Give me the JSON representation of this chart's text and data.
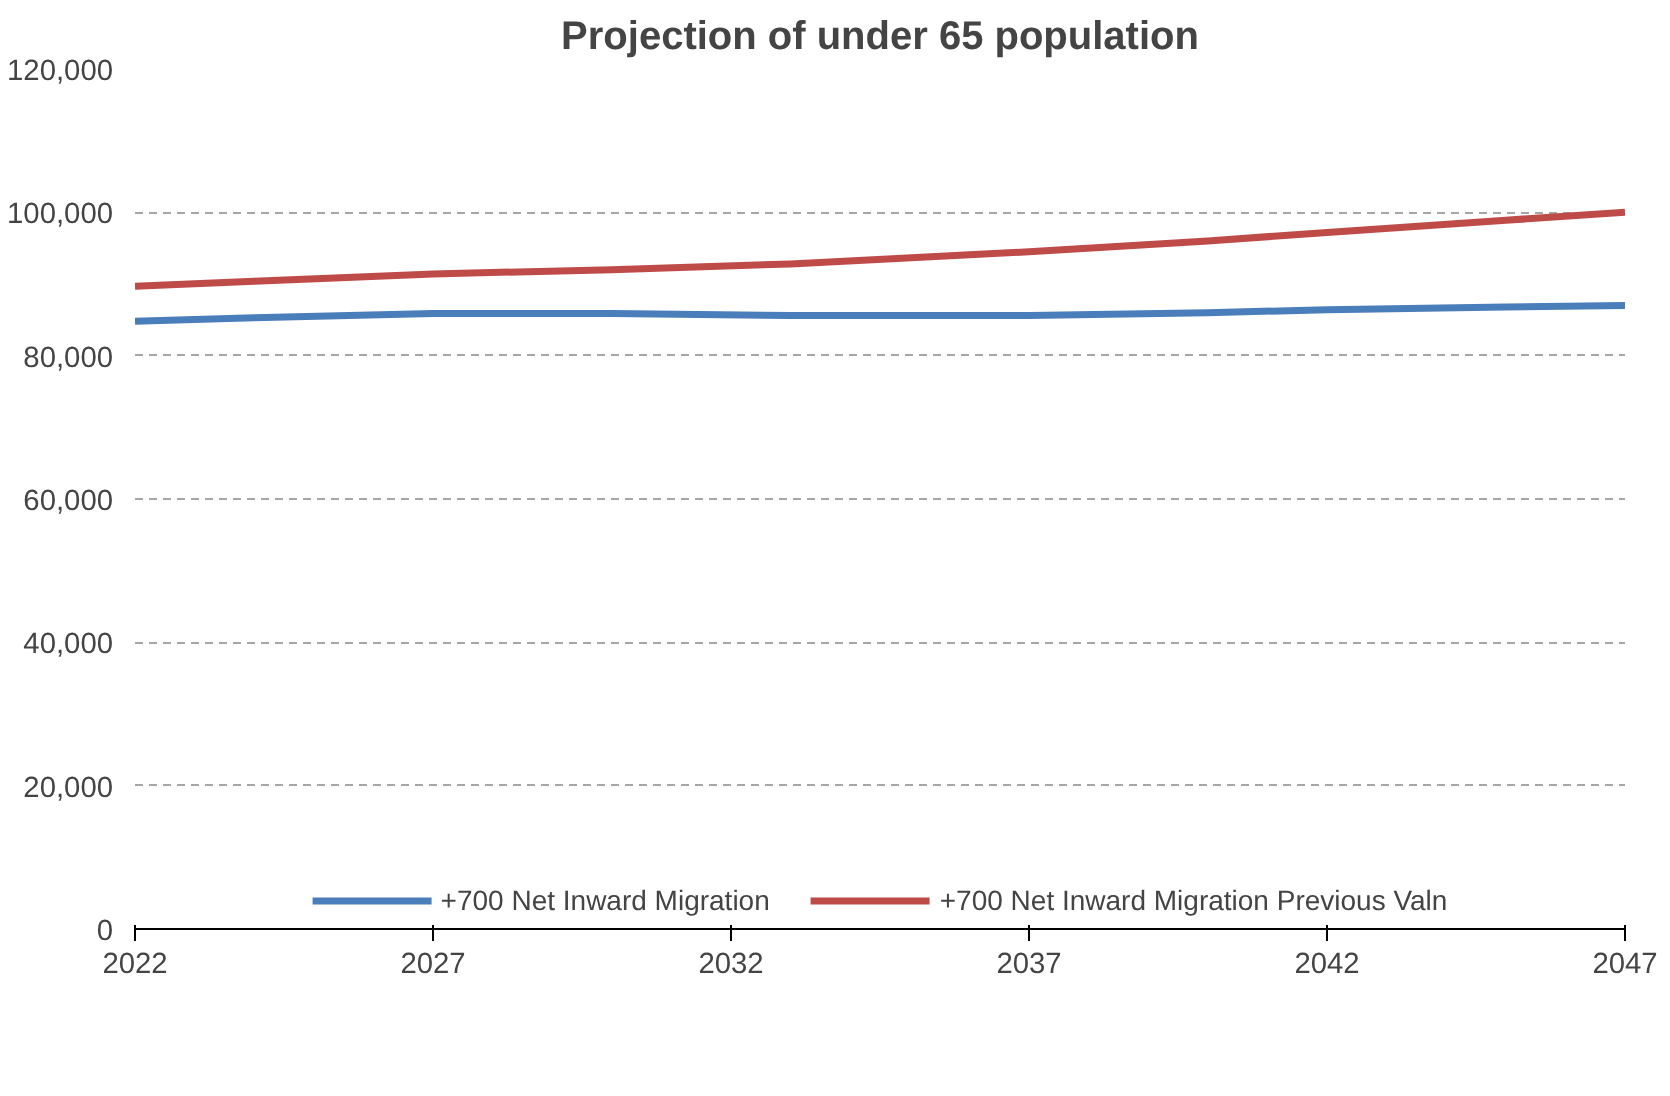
{
  "chart_data": {
    "type": "line",
    "title": "Projection of under 65 population",
    "x": [
      2022,
      2024,
      2027,
      2030,
      2033,
      2037,
      2040,
      2042,
      2045,
      2047
    ],
    "series": [
      {
        "name": "+700 Net Inward Migration",
        "color": "#4a7ebb",
        "values": [
          84800,
          85300,
          85900,
          85900,
          85600,
          85600,
          86000,
          86400,
          86800,
          87000
        ]
      },
      {
        "name": "+700 Net Inward Migration Previous Valn",
        "color": "#be4b48",
        "values": [
          89700,
          90400,
          91400,
          92000,
          92800,
          94500,
          96000,
          97200,
          98900,
          100000
        ]
      }
    ],
    "xlim": [
      2022,
      2047
    ],
    "xticks": [
      2022,
      2027,
      2032,
      2037,
      2042,
      2047
    ],
    "ylim": [
      0,
      120000
    ],
    "yticks": [
      {
        "value": 0,
        "label": "0"
      },
      {
        "value": 20000,
        "label": "20,000"
      },
      {
        "value": 40000,
        "label": "40,000"
      },
      {
        "value": 60000,
        "label": "60,000"
      },
      {
        "value": 80000,
        "label": "80,000"
      },
      {
        "value": 100000,
        "label": "100,000"
      },
      {
        "value": 120000,
        "label": "120,000"
      }
    ],
    "grid": "y",
    "legend": "bottom",
    "marker": "none",
    "line_style": "solid"
  }
}
